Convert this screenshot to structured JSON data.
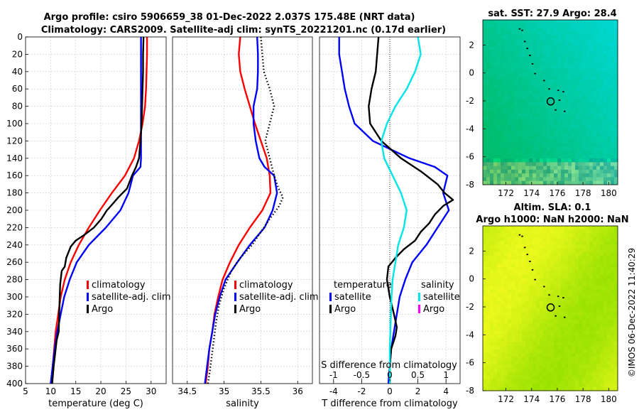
{
  "title_line1": "Argo profile: csiro 5906659_38 01-Dec-2022 2.037S 175.48E (NRT data)",
  "title_line2": "Climatology: CARS2009. Satellite-adj clim: synTS_20221201.nc (0.17d earlier)",
  "watermark": "©IMOS 06-Dec-2022 11:40:29",
  "colors": {
    "climatology": "#ff0000",
    "satellite": "#0000ff",
    "argo": "#000000",
    "sat_salinity": "#00e5e5",
    "argo_salinity": "#ff00ff"
  },
  "chart_data": [
    {
      "type": "line",
      "name": "temperature",
      "xlabel": "temperature (deg C)",
      "xlim": [
        5,
        33
      ],
      "xticks": [
        5,
        10,
        15,
        20,
        25,
        30
      ],
      "ylim": [
        0,
        400
      ],
      "yticks": [
        0,
        20,
        40,
        60,
        80,
        100,
        120,
        140,
        160,
        180,
        200,
        220,
        240,
        260,
        280,
        300,
        320,
        340,
        360,
        380,
        400
      ],
      "legend": [
        "climatology",
        "satellite-adj. clim",
        "Argo"
      ],
      "series": [
        {
          "name": "climatology",
          "color": "#ff0000",
          "points": [
            [
              29.2,
              0
            ],
            [
              29.2,
              20
            ],
            [
              29.1,
              40
            ],
            [
              29.0,
              60
            ],
            [
              28.8,
              80
            ],
            [
              28.3,
              100
            ],
            [
              27.6,
              120
            ],
            [
              26.6,
              140
            ],
            [
              24.8,
              160
            ],
            [
              22.2,
              180
            ],
            [
              19.8,
              200
            ],
            [
              17.6,
              220
            ],
            [
              15.6,
              240
            ],
            [
              14.0,
              260
            ],
            [
              12.8,
              280
            ],
            [
              12.0,
              300
            ],
            [
              11.5,
              320
            ],
            [
              11.0,
              340
            ],
            [
              10.7,
              360
            ],
            [
              10.4,
              380
            ],
            [
              10.1,
              400
            ]
          ]
        },
        {
          "name": "satellite-adj. clim",
          "color": "#0000ff",
          "points": [
            [
              28.0,
              0
            ],
            [
              28.0,
              20
            ],
            [
              28.0,
              40
            ],
            [
              28.0,
              60
            ],
            [
              28.0,
              80
            ],
            [
              28.0,
              100
            ],
            [
              28.0,
              120
            ],
            [
              28.0,
              140
            ],
            [
              27.9,
              150
            ],
            [
              26.4,
              160
            ],
            [
              25.5,
              180
            ],
            [
              23.9,
              200
            ],
            [
              21.0,
              220
            ],
            [
              17.6,
              240
            ],
            [
              15.2,
              260
            ],
            [
              13.8,
              280
            ],
            [
              12.7,
              300
            ],
            [
              12.0,
              320
            ],
            [
              11.3,
              340
            ],
            [
              10.8,
              360
            ],
            [
              10.4,
              380
            ],
            [
              10.0,
              400
            ]
          ]
        },
        {
          "name": "Argo",
          "color": "#000000",
          "points": [
            [
              28.5,
              0
            ],
            [
              28.4,
              20
            ],
            [
              28.4,
              40
            ],
            [
              28.3,
              60
            ],
            [
              28.2,
              80
            ],
            [
              28.1,
              100
            ],
            [
              27.9,
              120
            ],
            [
              27.6,
              140
            ],
            [
              27.0,
              150
            ],
            [
              26.2,
              160
            ],
            [
              25.2,
              175
            ],
            [
              23.5,
              185
            ],
            [
              22.0,
              195
            ],
            [
              21.2,
              200
            ],
            [
              20.1,
              210
            ],
            [
              18.6,
              220
            ],
            [
              16.8,
              228
            ],
            [
              15.0,
              235
            ],
            [
              14.0,
              242
            ],
            [
              13.1,
              255
            ],
            [
              12.8,
              265
            ],
            [
              12.2,
              270
            ],
            [
              11.9,
              285
            ],
            [
              11.8,
              300
            ],
            [
              11.7,
              320
            ],
            [
              11.6,
              340
            ],
            [
              11.2,
              350
            ],
            [
              11.0,
              360
            ],
            [
              10.6,
              380
            ],
            [
              10.3,
              400
            ]
          ]
        }
      ]
    },
    {
      "type": "line",
      "name": "salinity",
      "xlabel": "salinity",
      "xlim": [
        34.3,
        36.2
      ],
      "xticks": [
        34.5,
        35,
        35.5,
        36
      ],
      "ylim": [
        0,
        400
      ],
      "legend": [
        "climatology",
        "satellite-adj. clim",
        "Argo"
      ],
      "series": [
        {
          "name": "climatology",
          "color": "#ff0000",
          "points": [
            [
              35.22,
              0
            ],
            [
              35.2,
              20
            ],
            [
              35.22,
              40
            ],
            [
              35.28,
              60
            ],
            [
              35.35,
              80
            ],
            [
              35.42,
              100
            ],
            [
              35.5,
              120
            ],
            [
              35.58,
              140
            ],
            [
              35.62,
              160
            ],
            [
              35.63,
              180
            ],
            [
              35.52,
              200
            ],
            [
              35.35,
              220
            ],
            [
              35.2,
              240
            ],
            [
              35.08,
              260
            ],
            [
              34.98,
              280
            ],
            [
              34.92,
              300
            ],
            [
              34.87,
              320
            ],
            [
              34.84,
              340
            ],
            [
              34.8,
              360
            ],
            [
              34.78,
              380
            ],
            [
              34.75,
              400
            ]
          ]
        },
        {
          "name": "satellite-adj. clim",
          "color": "#0000ff",
          "points": [
            [
              35.45,
              0
            ],
            [
              35.46,
              20
            ],
            [
              35.46,
              40
            ],
            [
              35.45,
              60
            ],
            [
              35.4,
              80
            ],
            [
              35.4,
              100
            ],
            [
              35.43,
              120
            ],
            [
              35.48,
              140
            ],
            [
              35.55,
              150
            ],
            [
              35.68,
              160
            ],
            [
              35.72,
              180
            ],
            [
              35.66,
              200
            ],
            [
              35.55,
              220
            ],
            [
              35.35,
              240
            ],
            [
              35.18,
              260
            ],
            [
              35.02,
              280
            ],
            [
              34.94,
              300
            ],
            [
              34.88,
              320
            ],
            [
              34.84,
              340
            ],
            [
              34.8,
              360
            ],
            [
              34.77,
              380
            ],
            [
              34.74,
              400
            ]
          ]
        },
        {
          "name": "Argo",
          "color": "#000000",
          "points": [
            [
              35.5,
              0
            ],
            [
              35.52,
              20
            ],
            [
              35.54,
              40
            ],
            [
              35.62,
              60
            ],
            [
              35.68,
              80
            ],
            [
              35.62,
              100
            ],
            [
              35.56,
              120
            ],
            [
              35.62,
              140
            ],
            [
              35.68,
              160
            ],
            [
              35.74,
              175
            ],
            [
              35.8,
              185
            ],
            [
              35.75,
              195
            ],
            [
              35.62,
              210
            ],
            [
              35.5,
              225
            ],
            [
              35.38,
              240
            ],
            [
              35.22,
              255
            ],
            [
              35.1,
              270
            ],
            [
              35.0,
              290
            ],
            [
              34.93,
              310
            ],
            [
              34.89,
              330
            ],
            [
              34.86,
              350
            ],
            [
              34.83,
              370
            ],
            [
              34.8,
              390
            ],
            [
              34.78,
              400
            ]
          ]
        }
      ]
    },
    {
      "type": "line",
      "name": "difference",
      "xlabel": "T difference from climatology",
      "top_axis_label": "S difference from climatology",
      "xlim": [
        -5,
        5
      ],
      "xticks": [
        -4,
        -2,
        0,
        2,
        4
      ],
      "top_xlim": [
        -1.25,
        1.25
      ],
      "top_xticks": [
        -1,
        -0.5,
        0,
        0.5,
        1
      ],
      "ylim": [
        0,
        400
      ],
      "legend_titles": [
        "temperature",
        "salinity"
      ],
      "legend_temperature": [
        "satellite",
        "Argo"
      ],
      "legend_salinity": [
        "satellite",
        "Argo"
      ],
      "series": [
        {
          "name": "T satellite",
          "color": "#0000ff",
          "axis": "bottom",
          "points": [
            [
              -3.6,
              0
            ],
            [
              -3.6,
              20
            ],
            [
              -3.4,
              40
            ],
            [
              -3.2,
              60
            ],
            [
              -2.9,
              80
            ],
            [
              -2.5,
              100
            ],
            [
              -1.2,
              120
            ],
            [
              1.4,
              140
            ],
            [
              3.2,
              150
            ],
            [
              4.1,
              160
            ],
            [
              3.8,
              180
            ],
            [
              4.2,
              200
            ],
            [
              3.4,
              220
            ],
            [
              2.6,
              240
            ],
            [
              1.6,
              260
            ],
            [
              1.1,
              280
            ],
            [
              0.7,
              300
            ],
            [
              0.5,
              320
            ],
            [
              0.3,
              340
            ],
            [
              0.1,
              360
            ],
            [
              0,
              380
            ],
            [
              -0.1,
              400
            ]
          ]
        },
        {
          "name": "T Argo",
          "color": "#000000",
          "axis": "bottom",
          "points": [
            [
              -0.8,
              0
            ],
            [
              -0.9,
              20
            ],
            [
              -1.0,
              40
            ],
            [
              -1.3,
              60
            ],
            [
              -1.5,
              80
            ],
            [
              -1.4,
              100
            ],
            [
              -0.6,
              120
            ],
            [
              0.8,
              140
            ],
            [
              2.2,
              155
            ],
            [
              3.4,
              170
            ],
            [
              3.9,
              180
            ],
            [
              4.5,
              188
            ],
            [
              3.8,
              195
            ],
            [
              3.2,
              205
            ],
            [
              2.8,
              215
            ],
            [
              2.2,
              225
            ],
            [
              1.8,
              235
            ],
            [
              1.0,
              245
            ],
            [
              0.4,
              255
            ],
            [
              -0.1,
              265
            ],
            [
              -0.2,
              280
            ],
            [
              0,
              300
            ],
            [
              0.3,
              320
            ],
            [
              0.5,
              335
            ],
            [
              0.4,
              345
            ],
            [
              0.1,
              360
            ],
            [
              0,
              380
            ],
            [
              0,
              400
            ]
          ]
        },
        {
          "name": "S satellite",
          "color": "#00e5e5",
          "axis": "top",
          "points": [
            [
              0.5,
              0
            ],
            [
              0.55,
              20
            ],
            [
              0.45,
              40
            ],
            [
              0.3,
              60
            ],
            [
              0.1,
              80
            ],
            [
              -0.05,
              100
            ],
            [
              -0.15,
              120
            ],
            [
              -0.1,
              140
            ],
            [
              0.05,
              160
            ],
            [
              0.2,
              180
            ],
            [
              0.3,
              200
            ],
            [
              0.25,
              220
            ],
            [
              0.15,
              240
            ],
            [
              0.1,
              260
            ],
            [
              0.05,
              280
            ],
            [
              0.03,
              300
            ],
            [
              0.02,
              320
            ],
            [
              0.01,
              340
            ],
            [
              0,
              360
            ],
            [
              0,
              380
            ],
            [
              0,
              400
            ]
          ]
        }
      ]
    },
    {
      "type": "heatmap",
      "name": "sst_map",
      "title": "sat. SST: 27.9 Argo: 28.4",
      "xlim": [
        170.2,
        180.7
      ],
      "ylim": [
        -8,
        3.8
      ],
      "xticks": [
        172,
        174,
        176,
        178,
        180
      ],
      "yticks": [
        -8,
        -6,
        -4,
        -2,
        0,
        2
      ],
      "marker": {
        "lon": 175.48,
        "lat": -2.037
      }
    },
    {
      "type": "heatmap",
      "name": "sla_map",
      "title": "Altim. SLA: 0.1",
      "subtitle": "Argo h1000: NaN h2000: NaN",
      "xlim": [
        170.2,
        180.7
      ],
      "ylim": [
        -8,
        3.8
      ],
      "xticks": [
        172,
        174,
        176,
        178,
        180
      ],
      "yticks": [
        -8,
        -6,
        -4,
        -2,
        0,
        2
      ],
      "marker": {
        "lon": 175.48,
        "lat": -2.037
      }
    }
  ]
}
